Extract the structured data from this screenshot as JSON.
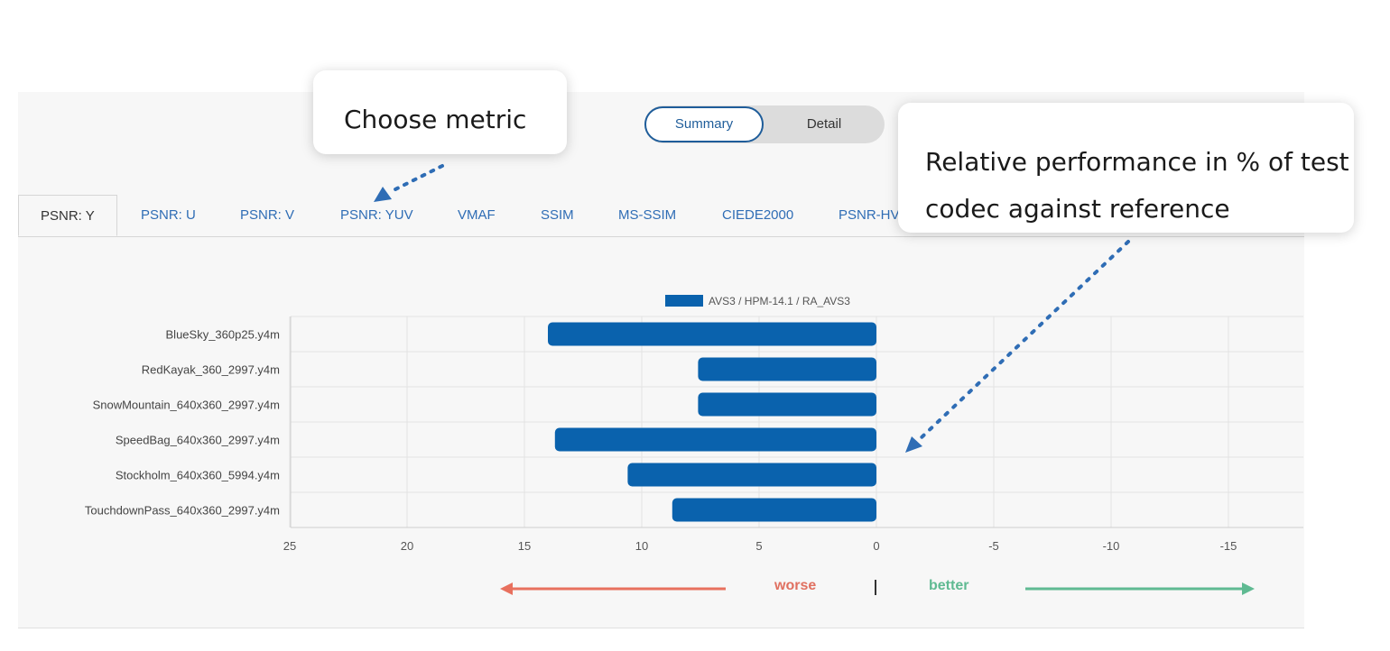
{
  "toggle": {
    "summary": "Summary",
    "detail": "Detail"
  },
  "tabs": [
    "PSNR: Y",
    "PSNR: U",
    "PSNR: V",
    "PSNR: YUV",
    "VMAF",
    "SSIM",
    "MS-SSIM",
    "CIEDE2000",
    "PSNR-HV"
  ],
  "active_tab": "PSNR: Y",
  "callouts": {
    "metric": "Choose metric",
    "performance": "Relative performance in % of test codec against reference"
  },
  "indicators": {
    "worse": "worse",
    "better": "better"
  },
  "colors": {
    "bar": "#0a62ad",
    "worse_arrow": "#e8705e",
    "better_arrow": "#5fba92",
    "annotation_dots": "#2f6db5"
  },
  "chart_data": {
    "type": "bar",
    "orientation": "horizontal",
    "categories": [
      "BlueSky_360p25.y4m",
      "RedKayak_360_2997.y4m",
      "SnowMountain_640x360_2997.y4m",
      "SpeedBag_640x360_2997.y4m",
      "Stockholm_640x360_5994.y4m",
      "TouchdownPass_640x360_2997.y4m"
    ],
    "series": [
      {
        "name": "AVS3 / HPM-14.1 / RA_AVS3",
        "values": [
          14.0,
          7.6,
          7.6,
          13.7,
          10.6,
          8.7
        ]
      }
    ],
    "xticks": [
      25,
      20,
      15,
      10,
      5,
      0,
      -5,
      -10,
      -15
    ],
    "xlim": [
      25,
      -18
    ],
    "x_reversed": true,
    "grid": true,
    "legend_position": "top-center"
  }
}
